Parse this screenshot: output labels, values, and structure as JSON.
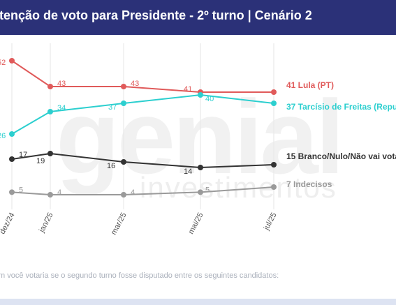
{
  "header": {
    "title": "ntenção de voto para Presidente - 2º turno | Cenário 2"
  },
  "watermark": {
    "brand": "genial",
    "sub": "investimentos"
  },
  "footnote": "m você votaria se o segundo turno fosse disputado entre os seguintes candidatos:",
  "chart_data": {
    "type": "line",
    "x": [
      "dez/24",
      "jan/25",
      "mar/25",
      "mai/25",
      "jul/25"
    ],
    "grid": "vertical",
    "series": [
      {
        "name": "41 Lula (PT)",
        "color": "#e05a5a",
        "values": [
          52,
          43,
          43,
          41,
          41
        ],
        "labels": [
          "52",
          "43",
          "43",
          "41",
          ""
        ]
      },
      {
        "name": "37 Tarcísio de Freitas (Repu",
        "color": "#2ccfcf",
        "values": [
          26,
          34,
          37,
          40,
          37
        ],
        "labels": [
          "26",
          "34",
          "37",
          "40",
          ""
        ]
      },
      {
        "name": "15 Branco/Nulo/Não vai vota",
        "color": "#333333",
        "values": [
          17,
          19,
          16,
          14,
          15
        ],
        "labels": [
          "17",
          "19",
          "16",
          "14",
          ""
        ]
      },
      {
        "name": "7 Indecisos",
        "color": "#9a9a9a",
        "values": [
          5,
          4,
          4,
          5,
          7
        ],
        "labels": [
          "5",
          "4",
          "4",
          "5",
          ""
        ]
      }
    ]
  }
}
